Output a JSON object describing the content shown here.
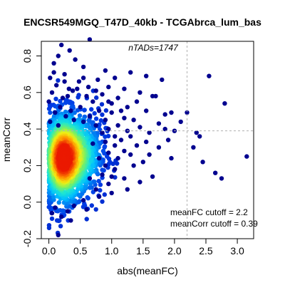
{
  "chart_data": {
    "type": "scatter",
    "title": "ENCSR549MGQ_T47D_40kb - TCGAbrca_lum_bas",
    "xlabel": "abs(meanFC)",
    "ylabel": "meanCorr",
    "xlim": [
      -0.12,
      3.26
    ],
    "ylim": [
      -0.2,
      0.88
    ],
    "x_ticks": [
      "0.0",
      "0.5",
      "1.0",
      "1.5",
      "2.0",
      "2.5",
      "3.0"
    ],
    "x_tick_values": [
      0,
      0.5,
      1,
      1.5,
      2,
      2.5,
      3
    ],
    "y_ticks": [
      "-0.2",
      "0.0",
      "0.2",
      "0.4",
      "0.6",
      "0.8"
    ],
    "y_tick_values": [
      -0.2,
      0,
      0.2,
      0.4,
      0.6,
      0.8
    ],
    "grid": false,
    "colormap": "density (blue to cyan to yellow to red)",
    "cutoffs": {
      "meanFC": 2.2,
      "meanCorr": 0.39
    },
    "annotations": {
      "ntads": "nTADs=1747",
      "fc_cutoff_text": "meanFC cutoff = 2.2",
      "corr_cutoff_text": "meanCorr cutoff = 0.39"
    },
    "points": [
      {
        "x": 0.2,
        "y": 0.86
      },
      {
        "x": 0.33,
        "y": 0.83
      },
      {
        "x": 0.65,
        "y": 0.89
      },
      {
        "x": 0.15,
        "y": 0.8
      },
      {
        "x": 0.42,
        "y": 0.78
      },
      {
        "x": 0.08,
        "y": 0.76
      },
      {
        "x": 0.55,
        "y": 0.74
      },
      {
        "x": 0.9,
        "y": 0.72
      },
      {
        "x": 1.3,
        "y": 0.71
      },
      {
        "x": 0.25,
        "y": 0.7
      },
      {
        "x": 0.02,
        "y": 0.68
      },
      {
        "x": 0.78,
        "y": 0.67
      },
      {
        "x": 1.05,
        "y": 0.68
      },
      {
        "x": 1.55,
        "y": 0.69
      },
      {
        "x": 0.48,
        "y": 0.66
      },
      {
        "x": 0.12,
        "y": 0.64
      },
      {
        "x": 1.8,
        "y": 0.67
      },
      {
        "x": 0.63,
        "y": 0.63
      },
      {
        "x": 0.95,
        "y": 0.63
      },
      {
        "x": 1.2,
        "y": 0.62
      },
      {
        "x": 0.38,
        "y": 0.61
      },
      {
        "x": 1.45,
        "y": 0.6
      },
      {
        "x": 0.85,
        "y": 0.59
      },
      {
        "x": 0.3,
        "y": 0.58
      },
      {
        "x": 1.1,
        "y": 0.57
      },
      {
        "x": 1.65,
        "y": 0.58
      },
      {
        "x": 1.4,
        "y": 0.55
      },
      {
        "x": 0.7,
        "y": 0.55
      },
      {
        "x": 1.0,
        "y": 0.54
      },
      {
        "x": 1.25,
        "y": 0.52
      },
      {
        "x": 1.55,
        "y": 0.5
      },
      {
        "x": 1.0,
        "y": 0.49
      },
      {
        "x": 1.2,
        "y": 0.46
      },
      {
        "x": 1.95,
        "y": 0.49
      },
      {
        "x": 2.55,
        "y": 0.69
      },
      {
        "x": 2.8,
        "y": 0.54
      },
      {
        "x": 2.2,
        "y": 0.49
      },
      {
        "x": 2.1,
        "y": 0.44
      },
      {
        "x": 1.75,
        "y": 0.43
      },
      {
        "x": 1.85,
        "y": 0.4
      },
      {
        "x": 1.6,
        "y": 0.38
      },
      {
        "x": 2.35,
        "y": 0.38
      },
      {
        "x": 2.4,
        "y": 0.36
      },
      {
        "x": 1.45,
        "y": 0.41
      },
      {
        "x": 1.3,
        "y": 0.36
      },
      {
        "x": 1.9,
        "y": 0.34
      },
      {
        "x": 1.15,
        "y": 0.34
      },
      {
        "x": 1.4,
        "y": 0.31
      },
      {
        "x": 1.05,
        "y": 0.31
      },
      {
        "x": 2.3,
        "y": 0.3
      },
      {
        "x": 1.2,
        "y": 0.28
      },
      {
        "x": 0.95,
        "y": 0.27
      },
      {
        "x": 1.3,
        "y": 0.26
      },
      {
        "x": 1.6,
        "y": 0.26
      },
      {
        "x": 1.95,
        "y": 0.24
      },
      {
        "x": 1.5,
        "y": 0.22
      },
      {
        "x": 3.15,
        "y": 0.25
      },
      {
        "x": 2.45,
        "y": 0.22
      },
      {
        "x": 1.35,
        "y": 0.2
      },
      {
        "x": 1.05,
        "y": 0.18
      },
      {
        "x": 1.65,
        "y": 0.14
      },
      {
        "x": 2.65,
        "y": 0.16
      },
      {
        "x": 2.75,
        "y": 0.13
      },
      {
        "x": 1.2,
        "y": 0.13
      },
      {
        "x": 1.45,
        "y": 0.11
      },
      {
        "x": 0.95,
        "y": 0.1
      },
      {
        "x": 1.25,
        "y": 0.07
      },
      {
        "x": 1.0,
        "y": 0.05
      },
      {
        "x": 0.8,
        "y": 0.03
      },
      {
        "x": 0.55,
        "y": 0.01
      },
      {
        "x": 0.3,
        "y": -0.05
      },
      {
        "x": 0.1,
        "y": -0.03
      },
      {
        "x": 0.4,
        "y": -0.02
      },
      {
        "x": 0.6,
        "y": -0.04
      },
      {
        "x": 0.35,
        "y": -0.1
      },
      {
        "x": 0.2,
        "y": -0.08
      },
      {
        "x": 0.05,
        "y": -0.06
      },
      {
        "x": 0.15,
        "y": -0.18
      },
      {
        "x": 0.5,
        "y": 0.52
      },
      {
        "x": 0.6,
        "y": 0.58
      },
      {
        "x": 0.45,
        "y": 0.62
      },
      {
        "x": 0.75,
        "y": 0.61
      },
      {
        "x": 0.8,
        "y": 0.5
      },
      {
        "x": 0.9,
        "y": 0.45
      },
      {
        "x": 0.85,
        "y": 0.38
      },
      {
        "x": 0.75,
        "y": 0.42
      },
      {
        "x": 0.95,
        "y": 0.4
      },
      {
        "x": 1.1,
        "y": 0.42
      },
      {
        "x": 0.7,
        "y": 0.32
      },
      {
        "x": 0.8,
        "y": 0.24
      },
      {
        "x": 0.85,
        "y": 0.15
      },
      {
        "x": 0.75,
        "y": 0.07
      },
      {
        "x": 0.65,
        "y": 0.13
      },
      {
        "x": 0.0,
        "y": 0.55
      },
      {
        "x": 0.05,
        "y": 0.6
      },
      {
        "x": 0.22,
        "y": 0.57
      },
      {
        "x": 0.18,
        "y": 0.52
      },
      {
        "x": 0.35,
        "y": 0.5
      },
      {
        "x": 0.1,
        "y": 0.49
      },
      {
        "x": 0.27,
        "y": 0.47
      },
      {
        "x": 0.4,
        "y": 0.45
      },
      {
        "x": 0.02,
        "y": 0.44
      },
      {
        "x": 0.15,
        "y": 0.42
      },
      {
        "x": 0.55,
        "y": 0.44
      },
      {
        "x": 0.65,
        "y": 0.47
      },
      {
        "x": 0.25,
        "y": 0.66
      },
      {
        "x": 0.32,
        "y": 0.62
      },
      {
        "x": 0.55,
        "y": 0.68
      },
      {
        "x": 0.08,
        "y": 0.71
      },
      {
        "x": 1.7,
        "y": 0.58
      },
      {
        "x": 1.85,
        "y": 0.48
      },
      {
        "x": 2.0,
        "y": 0.39
      },
      {
        "x": 1.75,
        "y": 0.3
      },
      {
        "x": 1.55,
        "y": 0.33
      },
      {
        "x": 1.35,
        "y": 0.45
      },
      {
        "x": 1.15,
        "y": 0.5
      },
      {
        "x": 0.95,
        "y": 0.55
      },
      {
        "x": 1.25,
        "y": 0.39
      },
      {
        "x": 1.05,
        "y": 0.36
      },
      {
        "x": 0.9,
        "y": 0.33
      },
      {
        "x": 1.1,
        "y": 0.24
      },
      {
        "x": 0.9,
        "y": 0.2
      },
      {
        "x": 1.0,
        "y": 0.14
      }
    ],
    "density_clusters": [
      {
        "x": 0.22,
        "y": 0.24,
        "sx": 0.17,
        "sy": 0.13,
        "n": 1200
      },
      {
        "x": 0.55,
        "y": 0.26,
        "sx": 0.18,
        "sy": 0.12,
        "n": 450
      }
    ]
  }
}
